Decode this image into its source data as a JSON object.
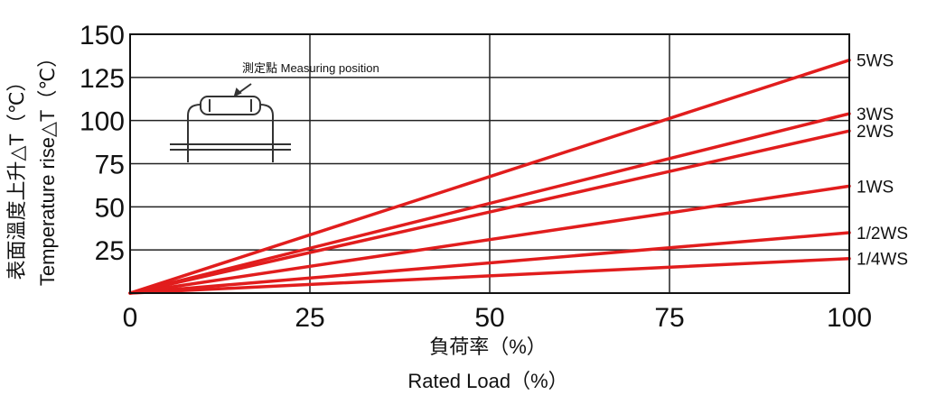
{
  "chart_data": {
    "type": "line",
    "x_unit_axis": "Rated Load (%)",
    "xlabel_cn": "負荷率（%）",
    "xlabel_en": "Rated Load（%）",
    "ylabel_cn": "表面溫度上升△T（℃）",
    "ylabel_en": "Temperature rise△T（℃）",
    "xlim": [
      0,
      100
    ],
    "ylim": [
      0,
      150
    ],
    "x_ticks": [
      0,
      25,
      50,
      75,
      100
    ],
    "y_ticks": [
      25,
      50,
      75,
      100,
      125,
      150
    ],
    "grid": true,
    "series": [
      {
        "name": "5WS",
        "x": [
          0,
          100
        ],
        "y": [
          0,
          135
        ]
      },
      {
        "name": "3WS",
        "x": [
          0,
          100
        ],
        "y": [
          0,
          104
        ]
      },
      {
        "name": "2WS",
        "x": [
          0,
          100
        ],
        "y": [
          0,
          94
        ]
      },
      {
        "name": "1WS",
        "x": [
          0,
          100
        ],
        "y": [
          0,
          62
        ]
      },
      {
        "name": "1/2WS",
        "x": [
          0,
          100
        ],
        "y": [
          0,
          35
        ]
      },
      {
        "name": "1/4WS",
        "x": [
          0,
          100
        ],
        "y": [
          0,
          20
        ]
      }
    ],
    "series_color": "#e11d1d",
    "annotation": "測定點 Measuring position"
  }
}
